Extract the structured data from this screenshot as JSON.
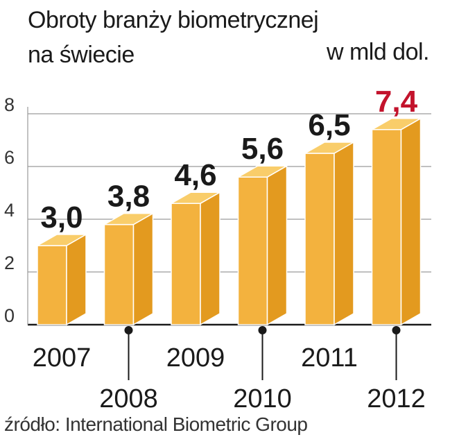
{
  "chart_data": {
    "type": "bar",
    "title_line1": "Obroty branży biometrycznej",
    "title_line2": "na świecie",
    "unit": "w mld dol.",
    "source": "źródło: International Biometric Group",
    "categories": [
      "2007",
      "2008",
      "2009",
      "2010",
      "2011",
      "2012"
    ],
    "values": [
      3.0,
      3.8,
      4.6,
      5.6,
      6.5,
      7.4
    ],
    "value_labels": [
      "3,0",
      "3,8",
      "4,6",
      "5,6",
      "6,5",
      "7,4"
    ],
    "highlight_index": 5,
    "yticks": [
      "0",
      "2",
      "4",
      "6",
      "8"
    ],
    "ylim": [
      0,
      8
    ],
    "grid": true,
    "colors": {
      "bar_front": "#f3b23e",
      "bar_side": "#e39a1f",
      "bar_top": "#f9cd6a",
      "bar_outline": "#ffffff",
      "label": "#1a1a1a",
      "highlight_label": "#c3132c",
      "grid": "#9a9a9a"
    }
  }
}
